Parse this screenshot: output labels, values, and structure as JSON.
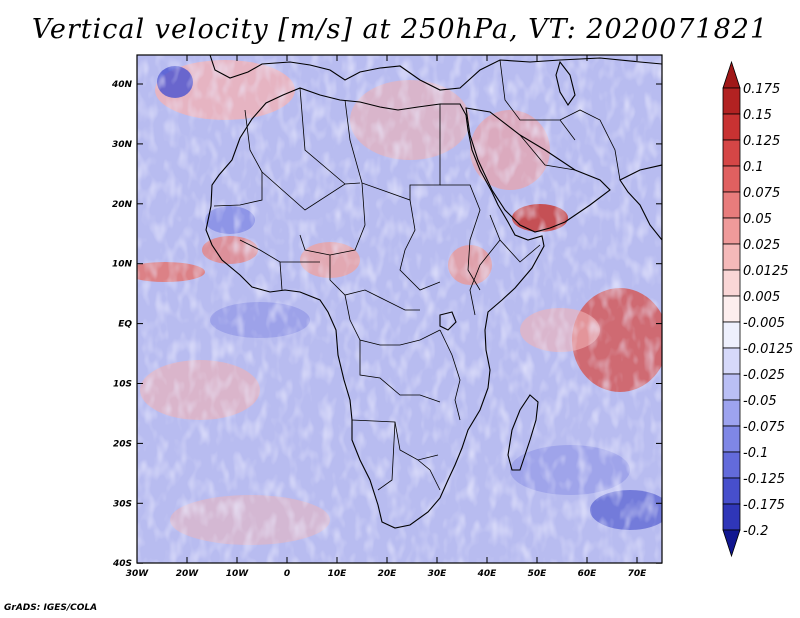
{
  "title": "Vertical velocity [m/s] at 250hPa, VT: 2020071821",
  "footer": "GrADS: IGES/COLA",
  "map": {
    "lat_labels": [
      "40N",
      "30N",
      "20N",
      "10N",
      "EQ",
      "10S",
      "20S",
      "30S",
      "40S"
    ],
    "lon_labels": [
      "30W",
      "20W",
      "10W",
      "0",
      "10E",
      "20E",
      "30E",
      "40E",
      "50E",
      "60E",
      "70E"
    ]
  },
  "colorbar": {
    "labels": [
      "0.175",
      "0.15",
      "0.125",
      "0.1",
      "0.075",
      "0.05",
      "0.025",
      "0.0125",
      "0.005",
      "-0.005",
      "-0.0125",
      "-0.025",
      "-0.05",
      "-0.075",
      "-0.1",
      "-0.125",
      "-0.175",
      "-0.2"
    ],
    "colors": [
      "#b22222",
      "#c83232",
      "#d54646",
      "#e06060",
      "#e87c7c",
      "#ef9a9a",
      "#f5b9b9",
      "#fad6d6",
      "#fdeeee",
      "#eef0fd",
      "#d6d9fa",
      "#babff5",
      "#9da3ef",
      "#7f87e6",
      "#636bdb",
      "#474fcc",
      "#2f36b8",
      "#1c22a0"
    ]
  },
  "chart_data": {
    "type": "heatmap",
    "title": "Vertical velocity [m/s] at 250hPa, VT: 2020071821",
    "variable": "Vertical velocity",
    "units": "m/s",
    "level": "250hPa",
    "valid_time": "2020071821",
    "lon_range": [
      -30,
      75
    ],
    "lat_range": [
      -40,
      45
    ],
    "colorbar_levels": [
      0.175,
      0.15,
      0.125,
      0.1,
      0.075,
      0.05,
      0.025,
      0.0125,
      0.005,
      -0.005,
      -0.0125,
      -0.025,
      -0.05,
      -0.075,
      -0.1,
      -0.125,
      -0.175,
      -0.2
    ]
  }
}
